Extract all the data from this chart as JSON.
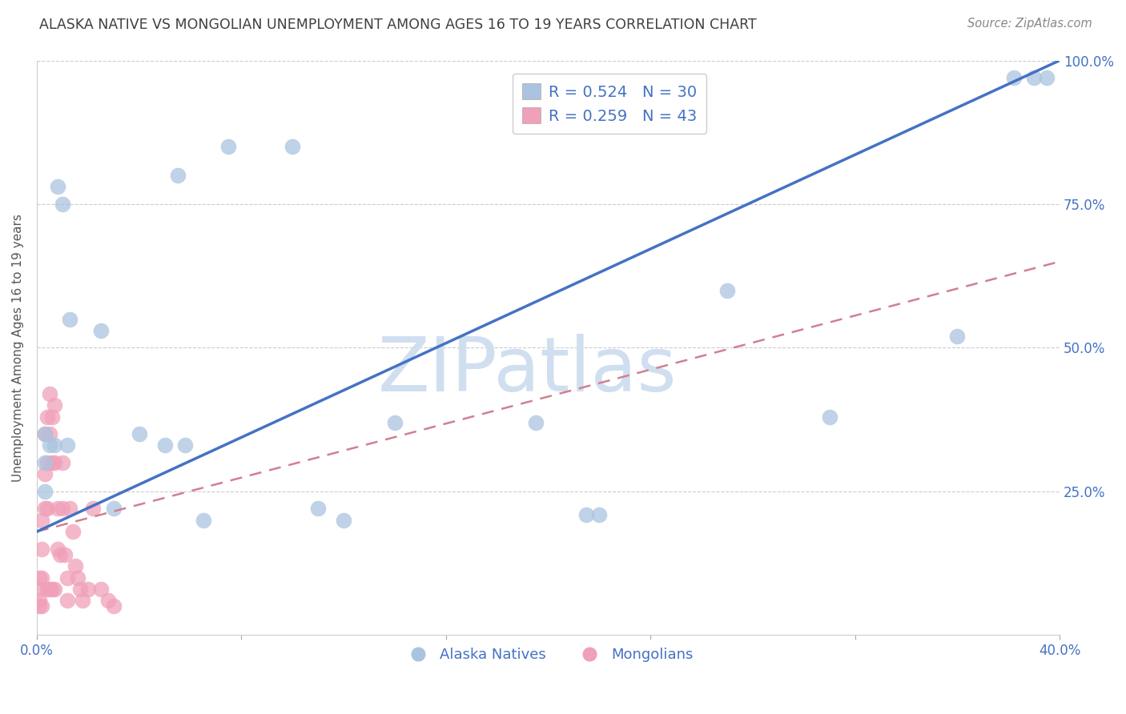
{
  "title": "ALASKA NATIVE VS MONGOLIAN UNEMPLOYMENT AMONG AGES 16 TO 19 YEARS CORRELATION CHART",
  "source": "Source: ZipAtlas.com",
  "ylabel": "Unemployment Among Ages 16 to 19 years",
  "xlim": [
    0.0,
    0.4
  ],
  "ylim": [
    0.0,
    1.0
  ],
  "xticks": [
    0.0,
    0.08,
    0.16,
    0.24,
    0.32,
    0.4
  ],
  "yticks": [
    0.25,
    0.5,
    0.75,
    1.0
  ],
  "xtick_labels": [
    "0.0%",
    "",
    "",
    "",
    "",
    "40.0%"
  ],
  "ytick_labels": [
    "25.0%",
    "50.0%",
    "75.0%",
    "100.0%"
  ],
  "alaska_R": 0.524,
  "alaska_N": 30,
  "mongol_R": 0.259,
  "mongol_N": 43,
  "alaska_color": "#aac4e0",
  "mongol_color": "#f0a0b8",
  "alaska_line_color": "#4472c4",
  "mongol_line_color": "#d08090",
  "watermark": "ZIPatlas",
  "watermark_color": "#d0dff0",
  "background_color": "#ffffff",
  "grid_color": "#cccccc",
  "axis_label_color": "#4472c4",
  "title_color": "#404040",
  "alaska_line_x0": 0.0,
  "alaska_line_y0": 0.18,
  "alaska_line_x1": 0.4,
  "alaska_line_y1": 1.0,
  "mongol_line_x0": 0.0,
  "mongol_line_y0": 0.18,
  "mongol_line_x1": 0.4,
  "mongol_line_y1": 0.65,
  "alaska_x": [
    0.003,
    0.003,
    0.003,
    0.005,
    0.007,
    0.008,
    0.01,
    0.012,
    0.013,
    0.025,
    0.03,
    0.04,
    0.05,
    0.055,
    0.058,
    0.065,
    0.075,
    0.1,
    0.11,
    0.12,
    0.14,
    0.195,
    0.215,
    0.22,
    0.27,
    0.31,
    0.36,
    0.382,
    0.39,
    0.395
  ],
  "alaska_y": [
    0.35,
    0.3,
    0.25,
    0.33,
    0.33,
    0.78,
    0.75,
    0.33,
    0.55,
    0.53,
    0.22,
    0.35,
    0.33,
    0.8,
    0.33,
    0.2,
    0.85,
    0.85,
    0.22,
    0.2,
    0.37,
    0.37,
    0.21,
    0.21,
    0.6,
    0.38,
    0.52,
    0.97,
    0.97,
    0.97
  ],
  "mongol_x": [
    0.001,
    0.001,
    0.001,
    0.001,
    0.002,
    0.002,
    0.002,
    0.002,
    0.003,
    0.003,
    0.003,
    0.004,
    0.004,
    0.004,
    0.004,
    0.005,
    0.005,
    0.005,
    0.006,
    0.006,
    0.006,
    0.007,
    0.007,
    0.007,
    0.008,
    0.008,
    0.009,
    0.01,
    0.01,
    0.011,
    0.012,
    0.012,
    0.013,
    0.014,
    0.015,
    0.016,
    0.017,
    0.018,
    0.02,
    0.022,
    0.025,
    0.028,
    0.03
  ],
  "mongol_y": [
    0.1,
    0.08,
    0.06,
    0.05,
    0.2,
    0.15,
    0.1,
    0.05,
    0.35,
    0.28,
    0.22,
    0.38,
    0.3,
    0.22,
    0.08,
    0.42,
    0.35,
    0.08,
    0.38,
    0.3,
    0.08,
    0.4,
    0.3,
    0.08,
    0.22,
    0.15,
    0.14,
    0.3,
    0.22,
    0.14,
    0.1,
    0.06,
    0.22,
    0.18,
    0.12,
    0.1,
    0.08,
    0.06,
    0.08,
    0.22,
    0.08,
    0.06,
    0.05
  ]
}
